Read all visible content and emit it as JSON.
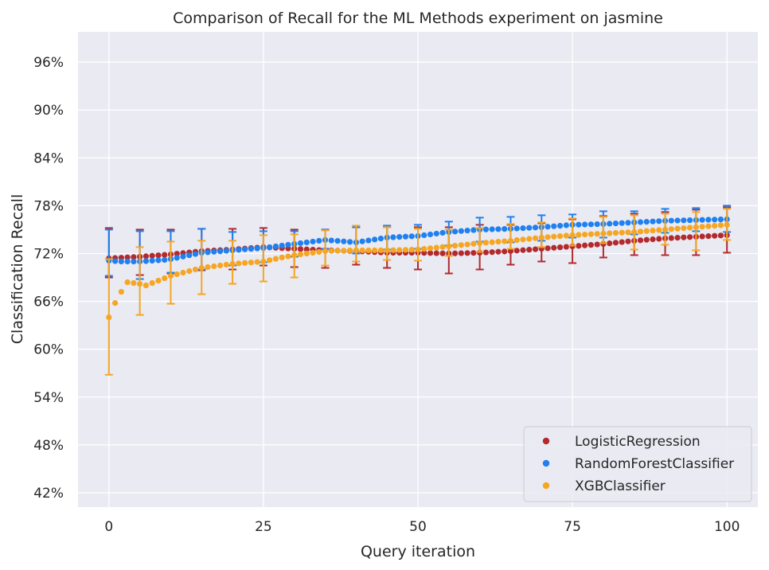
{
  "chart_data": {
    "type": "scatter",
    "title": "Comparison of Recall for the ML Methods experiment on jasmine",
    "xlabel": "Query iteration",
    "ylabel": "Classification Recall",
    "xlim": [
      -5,
      105
    ],
    "ylim": [
      40.2,
      99.8
    ],
    "xticks": [
      0,
      25,
      50,
      75,
      100
    ],
    "xtick_labels": [
      "0",
      "25",
      "50",
      "75",
      "100"
    ],
    "yticks": [
      42,
      48,
      54,
      60,
      66,
      72,
      78,
      84,
      90,
      96
    ],
    "ytick_labels": [
      "42%",
      "48%",
      "54%",
      "60%",
      "66%",
      "72%",
      "78%",
      "84%",
      "90%",
      "96%"
    ],
    "grid": true,
    "legend_position": "bottom-right",
    "background_color": "#eaeaf2",
    "series": [
      {
        "name": "LogisticRegression",
        "color": "#b22a2e",
        "anchors_x": [
          0,
          5,
          10,
          15,
          20,
          25,
          30,
          35,
          40,
          45,
          50,
          55,
          60,
          65,
          70,
          75,
          80,
          85,
          90,
          95,
          100
        ],
        "anchors_y": [
          71.4,
          71.6,
          71.9,
          72.3,
          72.5,
          72.8,
          72.6,
          72.4,
          72.3,
          72.1,
          72.1,
          72.0,
          72.1,
          72.3,
          72.6,
          72.9,
          73.2,
          73.6,
          73.9,
          74.1,
          74.3
        ],
        "error_x": [
          0,
          5,
          10,
          15,
          20,
          25,
          30,
          35,
          40,
          45,
          50,
          55,
          60,
          65,
          70,
          75,
          80,
          85,
          90,
          95,
          100
        ],
        "error_low": [
          69.0,
          69.3,
          69.5,
          69.9,
          70.0,
          70.5,
          70.3,
          70.2,
          70.6,
          70.2,
          70.0,
          69.5,
          70.0,
          70.6,
          71.0,
          70.8,
          71.5,
          71.8,
          71.8,
          71.8,
          72.1
        ],
        "error_high": [
          75.2,
          75.0,
          75.0,
          75.1,
          75.1,
          75.2,
          75.0,
          75.0,
          75.3,
          75.3,
          75.3,
          75.3,
          75.6,
          75.6,
          75.8,
          76.3,
          76.7,
          77.0,
          77.2,
          77.5,
          77.8
        ]
      },
      {
        "name": "RandomForestClassifier",
        "color": "#1f80f0",
        "anchors_x": [
          0,
          2,
          5,
          9,
          10,
          15,
          20,
          25,
          30,
          35,
          40,
          45,
          50,
          55,
          60,
          65,
          70,
          75,
          80,
          85,
          90,
          95,
          100
        ],
        "anchors_y": [
          71.1,
          71.0,
          71.0,
          71.2,
          71.3,
          72.1,
          72.4,
          72.7,
          73.2,
          73.7,
          73.4,
          74.0,
          74.2,
          74.7,
          75.0,
          75.1,
          75.3,
          75.6,
          75.7,
          75.9,
          76.1,
          76.2,
          76.3
        ],
        "error_x": [
          0,
          5,
          10,
          15,
          20,
          25,
          30,
          35,
          40,
          45,
          50,
          55,
          60,
          65,
          70,
          75,
          80,
          85,
          90,
          95,
          100
        ],
        "error_low": [
          69.2,
          68.8,
          69.6,
          70.0,
          70.5,
          70.9,
          71.6,
          72.6,
          72.0,
          72.5,
          72.6,
          73.0,
          73.5,
          73.4,
          73.6,
          74.0,
          74.0,
          74.4,
          74.6,
          74.8,
          74.7
        ],
        "error_high": [
          75.0,
          74.8,
          74.8,
          75.1,
          74.7,
          74.8,
          74.8,
          75.0,
          75.3,
          75.5,
          75.6,
          76.0,
          76.5,
          76.6,
          76.8,
          76.9,
          77.3,
          77.3,
          77.6,
          77.7,
          78.0
        ]
      },
      {
        "name": "XGBClassifier",
        "color": "#f5a623",
        "anchors_x": [
          0,
          1,
          2,
          3,
          5,
          6,
          10,
          15,
          20,
          25,
          28,
          30,
          35,
          40,
          45,
          50,
          55,
          60,
          65,
          70,
          75,
          80,
          85,
          90,
          95,
          100
        ],
        "anchors_y": [
          64.0,
          65.8,
          67.2,
          68.4,
          68.2,
          68.0,
          69.2,
          70.2,
          70.7,
          71.0,
          71.5,
          71.8,
          72.3,
          72.4,
          72.4,
          72.5,
          72.9,
          73.3,
          73.6,
          74.0,
          74.3,
          74.5,
          74.7,
          75.0,
          75.3,
          75.6
        ],
        "error_x": [
          0,
          5,
          10,
          15,
          20,
          25,
          30,
          35,
          40,
          45,
          50,
          55,
          60,
          65,
          70,
          75,
          80,
          85,
          90,
          95,
          100
        ],
        "error_low": [
          56.8,
          64.3,
          65.7,
          66.9,
          68.2,
          68.5,
          69.0,
          70.5,
          71.0,
          71.2,
          71.1,
          71.7,
          72.2,
          72.6,
          72.8,
          73.0,
          73.3,
          72.5,
          73.1,
          72.4,
          73.7
        ],
        "error_high": [
          71.3,
          72.8,
          73.5,
          73.6,
          73.6,
          74.3,
          74.4,
          74.9,
          75.5,
          75.3,
          75.1,
          75.0,
          75.2,
          75.7,
          75.9,
          76.4,
          76.6,
          76.8,
          77.0,
          77.2,
          77.6
        ]
      }
    ]
  }
}
